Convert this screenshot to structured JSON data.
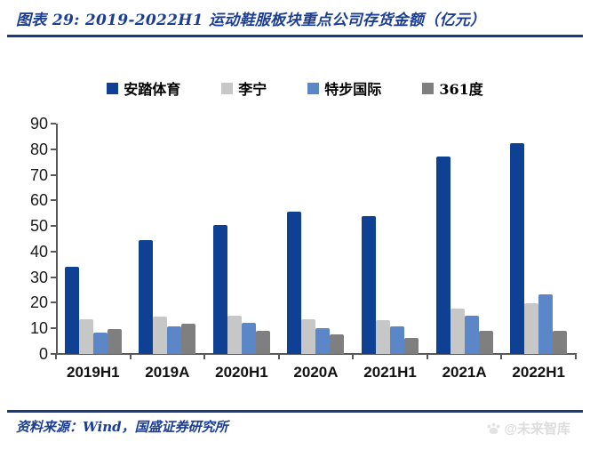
{
  "header": {
    "title": "图表 29:  2019-2022H1 运动鞋服板块重点公司存货金额（亿元）"
  },
  "chart_data": {
    "type": "bar",
    "title": "2019-2022H1 运动鞋服板块重点公司存货金额（亿元）",
    "categories": [
      "2019H1",
      "2019A",
      "2020H1",
      "2020A",
      "2021H1",
      "2021A",
      "2022H1"
    ],
    "series": [
      {
        "name": "安踏体育",
        "color": "#0e4194",
        "values": [
          34,
          44.5,
          50.5,
          55.5,
          54,
          77,
          82.5
        ]
      },
      {
        "name": "李宁",
        "color": "#c7c7c7",
        "values": [
          13.4,
          14.5,
          15.0,
          13.7,
          13.2,
          17.8,
          19.8
        ]
      },
      {
        "name": "特步国际",
        "color": "#5b87c9",
        "values": [
          8.3,
          10.8,
          12.3,
          10.0,
          10.9,
          15.0,
          23.3
        ]
      },
      {
        "name": "361度",
        "color": "#7f7f7f",
        "values": [
          9.7,
          11.9,
          8.9,
          7.6,
          6.3,
          8.9,
          9.1
        ]
      }
    ],
    "xlabel": "",
    "ylabel": "",
    "ylim": [
      0,
      90
    ],
    "ytick_step": 10,
    "legend_position": "top",
    "grid": false,
    "axis_color": "#595959"
  },
  "footer": {
    "source_label": "资料来源：Wind，国盛证券研究所",
    "watermark_label": "@未来智库",
    "accent_color": "#1b3e94"
  }
}
